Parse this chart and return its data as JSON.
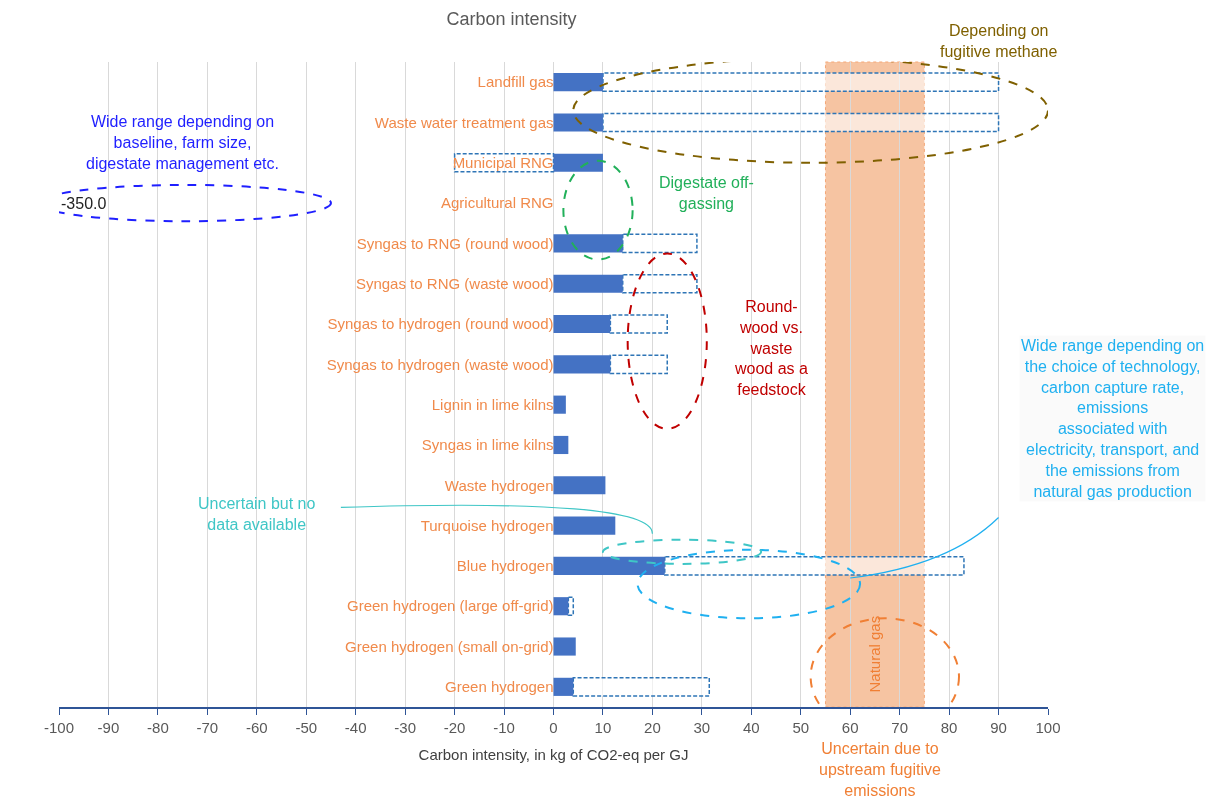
{
  "chart_data": {
    "type": "bar",
    "orientation": "horizontal",
    "title": "Carbon intensity",
    "xlabel": "Carbon intensity, in kg of CO2-eq per GJ",
    "categories": [
      "Landfill gas",
      "Waste water treatment gas",
      "Municipal RNG",
      "Agricultural RNG",
      "Syngas to RNG (round wood)",
      "Syngas to RNG (waste wood)",
      "Syngas to hydrogen (round wood)",
      "Syngas to hydrogen (waste wood)",
      "Lignin in lime kilns",
      "Syngas in lime kilns",
      "Waste hydrogen",
      "Turquoise hydrogen",
      "Blue hydrogen",
      "Green hydrogen (large off-grid)",
      "Green hydrogen (small on-grid)",
      "Green hydrogen"
    ],
    "series": [
      {
        "color": "#4472c4",
        "values": [
          10,
          10,
          10,
          null,
          14,
          14,
          11.5,
          11.5,
          2.5,
          3,
          10.5,
          12.5,
          22.5,
          3,
          4.5,
          4
        ]
      },
      {
        "color": "#2e75b6",
        "line_style": "dashed",
        "base": [
          10,
          10,
          -20,
          null,
          14,
          14,
          11.5,
          11.5,
          null,
          null,
          null,
          null,
          22.5,
          3,
          null,
          4
        ],
        "values": [
          80,
          80,
          20,
          null,
          15,
          15,
          11.5,
          11.5,
          null,
          null,
          null,
          null,
          60.5,
          1,
          null,
          27.5
        ]
      }
    ],
    "xlim": [
      -100,
      100
    ],
    "xticks": [
      -100,
      -90,
      -80,
      -70,
      -60,
      -50,
      -40,
      -30,
      -20,
      -10,
      0,
      10,
      20,
      30,
      40,
      50,
      60,
      70,
      80,
      90,
      100
    ],
    "grid": "x",
    "bands": [
      {
        "axis": "x",
        "from": 55,
        "to": 75,
        "label": "Natural gas",
        "color": "#f4b183"
      }
    ],
    "annotations": [
      "Depending on\nfugitive methane",
      "Wide range depending on\nbaseline, farm size,\ndigestate management etc.",
      "Digestate off-\ngassing",
      "Round-\nwood vs.\nwaste\nwood as a\nfeedstock",
      "Wide range depending on\nthe choice of technology,\ncarbon capture rate,\nemissions\nassociated with\nelectricity, transport, and\nthe emissions from\nnatural gas production",
      "Uncertain but no\ndata available",
      "Uncertain due to\nupstream fugitive\nemissions",
      "-350.0"
    ]
  }
}
